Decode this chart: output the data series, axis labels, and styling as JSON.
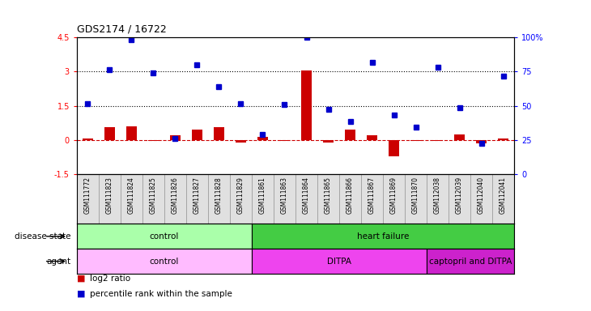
{
  "title": "GDS2174 / 16722",
  "samples": [
    "GSM111772",
    "GSM111823",
    "GSM111824",
    "GSM111825",
    "GSM111826",
    "GSM111827",
    "GSM111828",
    "GSM111829",
    "GSM111861",
    "GSM111863",
    "GSM111864",
    "GSM111865",
    "GSM111866",
    "GSM111867",
    "GSM111869",
    "GSM111870",
    "GSM112038",
    "GSM112039",
    "GSM112040",
    "GSM112041"
  ],
  "log2_ratio": [
    0.05,
    0.55,
    0.6,
    -0.05,
    0.2,
    0.45,
    0.55,
    -0.1,
    0.15,
    -0.05,
    3.05,
    -0.1,
    0.45,
    0.2,
    -0.7,
    -0.05,
    -0.05,
    0.25,
    -0.15,
    0.08
  ],
  "percentile_left": [
    1.6,
    3.1,
    4.4,
    2.95,
    0.05,
    3.3,
    2.35,
    1.6,
    0.25,
    1.55,
    4.5,
    1.35,
    0.8,
    3.4,
    1.1,
    0.55,
    3.2,
    1.4,
    -0.15,
    2.8
  ],
  "disease_state_groups": [
    {
      "label": "control",
      "start": 0,
      "end": 8,
      "color": "#aaffaa"
    },
    {
      "label": "heart failure",
      "start": 8,
      "end": 20,
      "color": "#44cc44"
    }
  ],
  "agent_groups": [
    {
      "label": "control",
      "start": 0,
      "end": 8,
      "color": "#ffbbff"
    },
    {
      "label": "DITPA",
      "start": 8,
      "end": 16,
      "color": "#ee44ee"
    },
    {
      "label": "captopril and DITPA",
      "start": 16,
      "end": 20,
      "color": "#cc22cc"
    }
  ],
  "bar_color": "#cc0000",
  "dot_color": "#0000cc",
  "left_ylim": [
    -1.5,
    4.5
  ],
  "left_yticks": [
    -1.5,
    0.0,
    1.5,
    3.0,
    4.5
  ],
  "right_ylim": [
    0,
    100
  ],
  "right_yticks": [
    0,
    25,
    50,
    75,
    100
  ],
  "hlines": [
    1.5,
    3.0
  ],
  "zero_line_color": "#cc0000",
  "background_color": "#ffffff",
  "bar_width": 0.5
}
